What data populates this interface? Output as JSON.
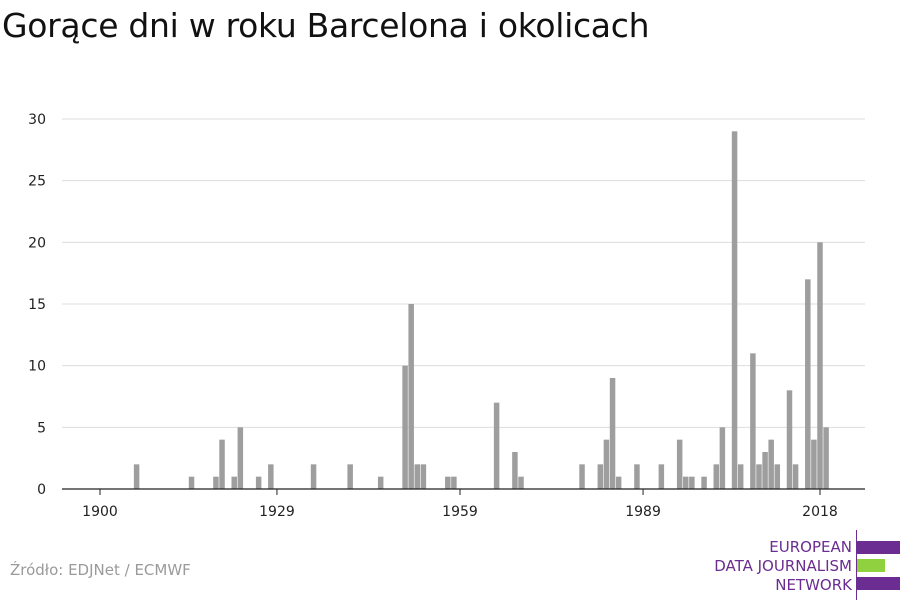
{
  "title": "Gorące dni w roku Barcelona i okolicach",
  "source": "Źródło: EDJNet / ECMWF",
  "logo": {
    "lines": [
      "EUROPEAN",
      "DATA JOURNALISM",
      "NETWORK"
    ],
    "colors": {
      "purple": "#6b2d91",
      "green": "#8fd13f"
    }
  },
  "chart_data": {
    "type": "bar",
    "title": "Gorące dni w roku Barcelona i okolicach",
    "xlabel": "",
    "ylabel": "",
    "xlim": [
      1900,
      2022
    ],
    "ylim": [
      0,
      30
    ],
    "yticks": [
      0,
      5,
      10,
      15,
      20,
      25,
      30
    ],
    "xticks": [
      1900,
      1929,
      1959,
      1989,
      2018
    ],
    "grid": true,
    "bar_color": "#9e9e9e",
    "points": [
      {
        "x": 1906,
        "y": 2
      },
      {
        "x": 1915,
        "y": 1
      },
      {
        "x": 1919,
        "y": 1
      },
      {
        "x": 1920,
        "y": 4
      },
      {
        "x": 1922,
        "y": 1
      },
      {
        "x": 1923,
        "y": 5
      },
      {
        "x": 1926,
        "y": 1
      },
      {
        "x": 1928,
        "y": 2
      },
      {
        "x": 1935,
        "y": 2
      },
      {
        "x": 1941,
        "y": 2
      },
      {
        "x": 1946,
        "y": 1
      },
      {
        "x": 1950,
        "y": 10
      },
      {
        "x": 1951,
        "y": 15
      },
      {
        "x": 1952,
        "y": 2
      },
      {
        "x": 1953,
        "y": 2
      },
      {
        "x": 1957,
        "y": 1
      },
      {
        "x": 1958,
        "y": 1
      },
      {
        "x": 1965,
        "y": 7
      },
      {
        "x": 1968,
        "y": 3
      },
      {
        "x": 1969,
        "y": 1
      },
      {
        "x": 1979,
        "y": 2
      },
      {
        "x": 1982,
        "y": 2
      },
      {
        "x": 1983,
        "y": 4
      },
      {
        "x": 1984,
        "y": 9
      },
      {
        "x": 1985,
        "y": 1
      },
      {
        "x": 1988,
        "y": 2
      },
      {
        "x": 1992,
        "y": 2
      },
      {
        "x": 1995,
        "y": 4
      },
      {
        "x": 1996,
        "y": 1
      },
      {
        "x": 1997,
        "y": 1
      },
      {
        "x": 1999,
        "y": 1
      },
      {
        "x": 2001,
        "y": 2
      },
      {
        "x": 2002,
        "y": 5
      },
      {
        "x": 2004,
        "y": 29
      },
      {
        "x": 2005,
        "y": 2
      },
      {
        "x": 2007,
        "y": 11
      },
      {
        "x": 2008,
        "y": 2
      },
      {
        "x": 2009,
        "y": 3
      },
      {
        "x": 2010,
        "y": 4
      },
      {
        "x": 2011,
        "y": 2
      },
      {
        "x": 2013,
        "y": 8
      },
      {
        "x": 2014,
        "y": 2
      },
      {
        "x": 2016,
        "y": 17
      },
      {
        "x": 2017,
        "y": 4
      },
      {
        "x": 2018,
        "y": 20
      },
      {
        "x": 2019,
        "y": 5
      }
    ]
  }
}
